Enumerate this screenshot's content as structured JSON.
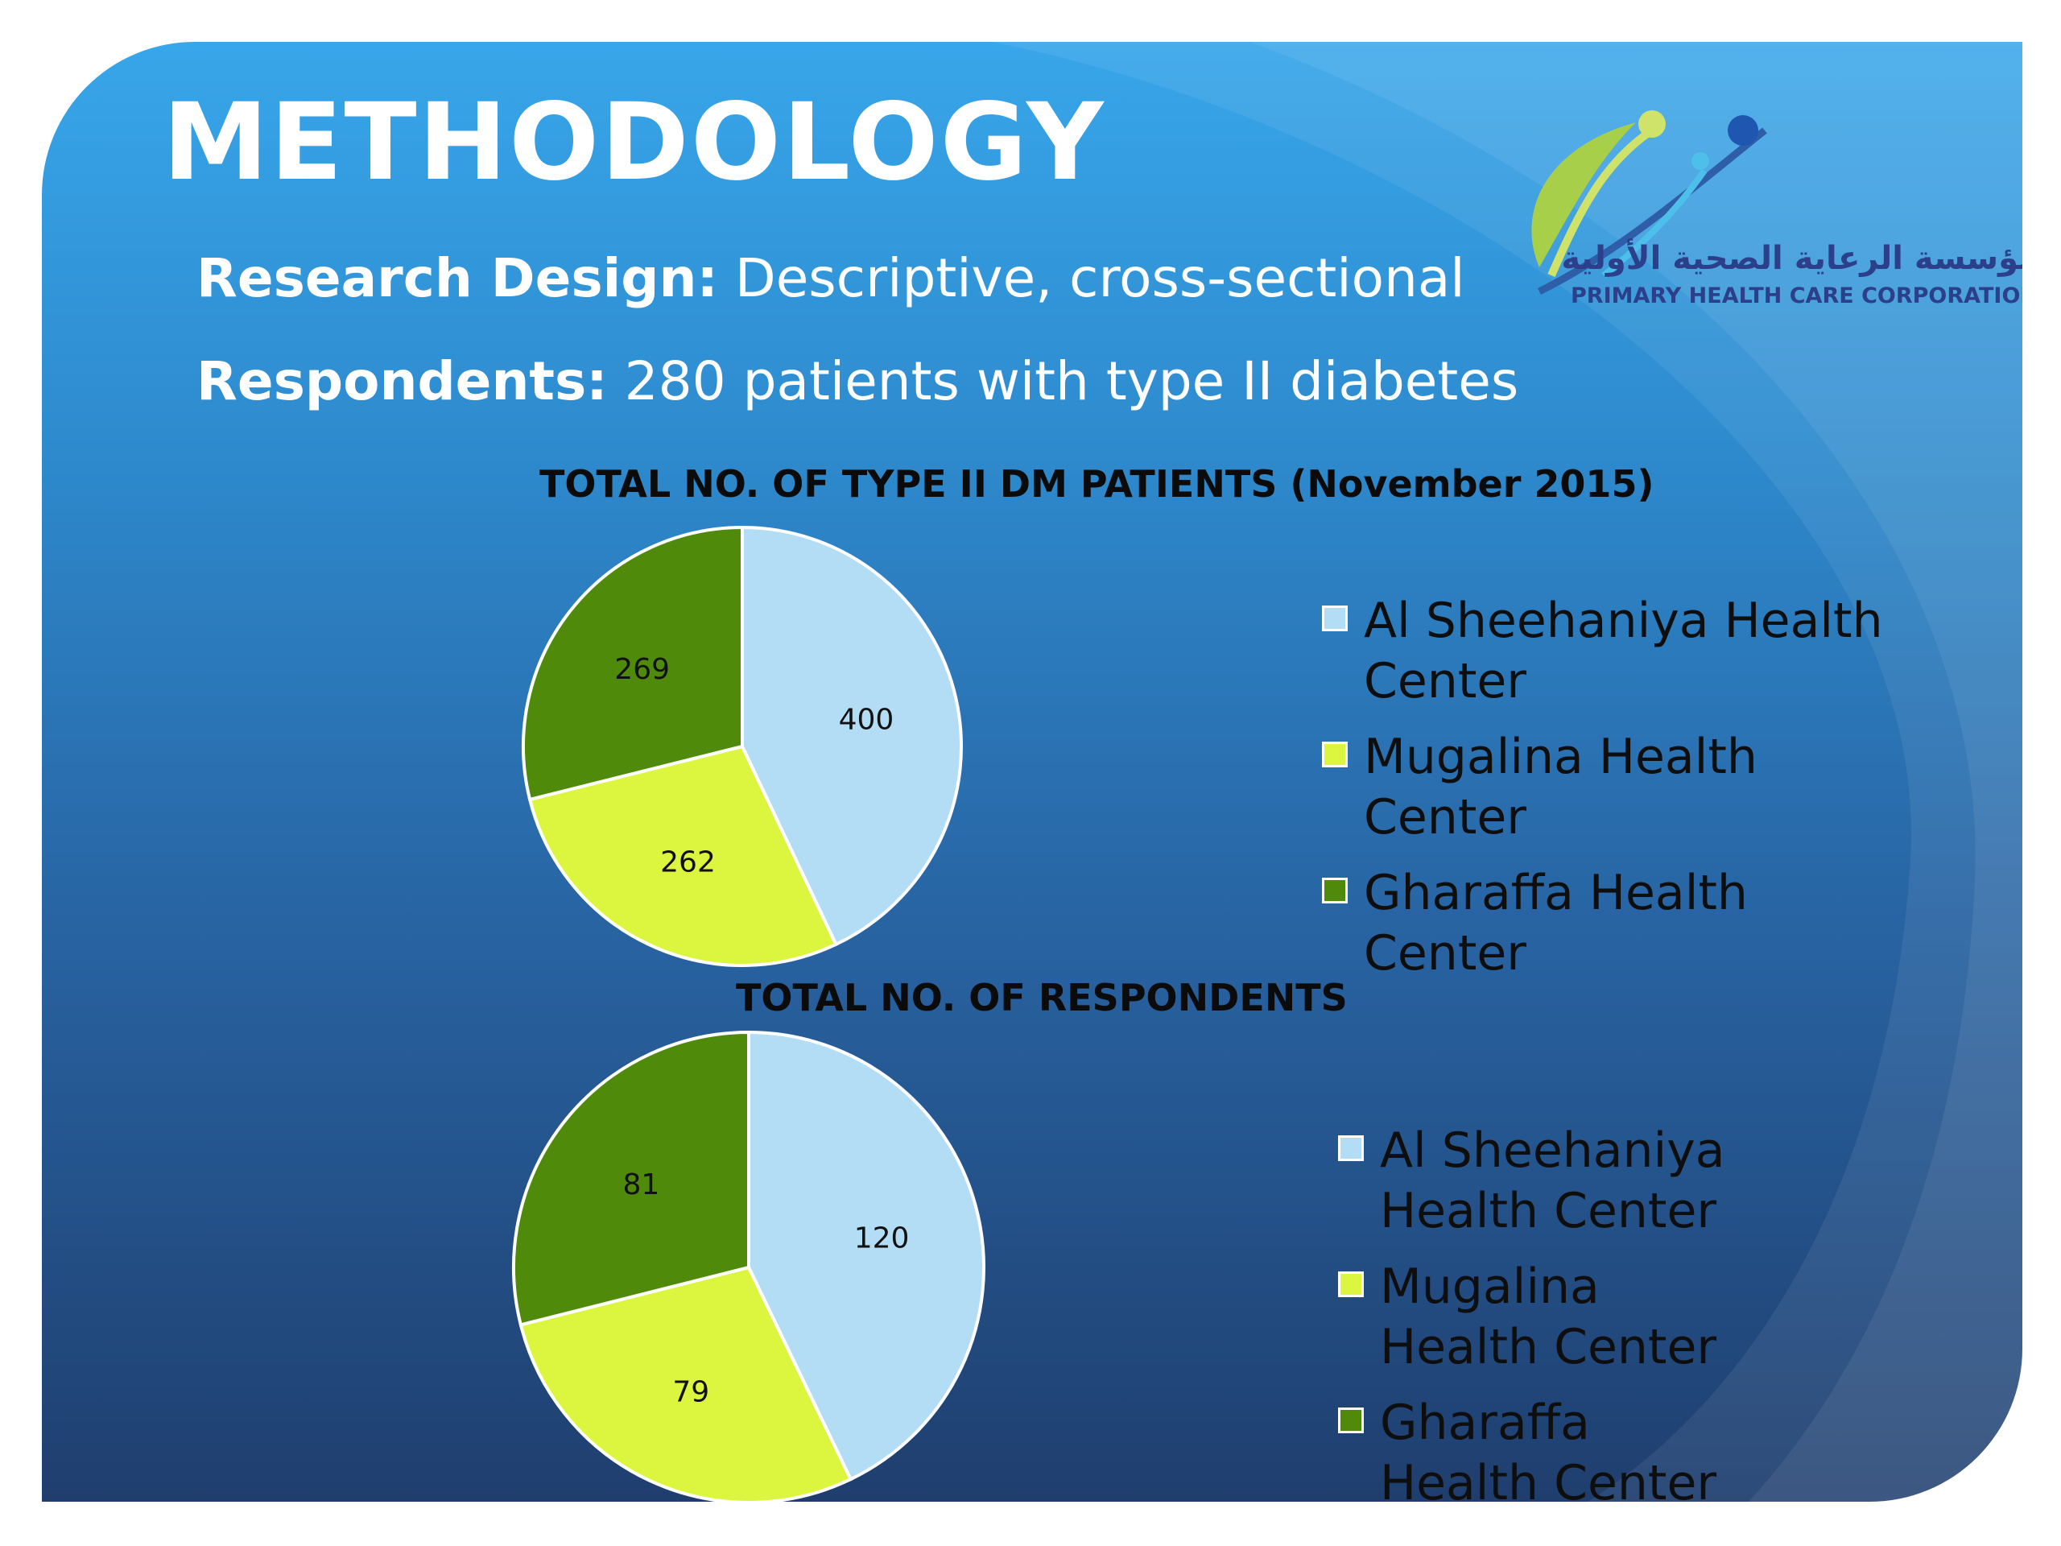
{
  "slide": {
    "title": "METHODOLOGY",
    "line1": {
      "label": "Research Design:",
      "value": " Descriptive, cross-sectional"
    },
    "line2": {
      "label": "Respondents:",
      "value": " 280 patients with type II diabetes"
    }
  },
  "logo": {
    "arabic": "مؤسسة الرعاية الصحية الأولية",
    "english": "PRIMARY HEALTH CARE CORPORATION"
  },
  "colors": {
    "sheehaniya": "#b3dcf5",
    "mugalina": "#dcf53f",
    "gharaffa": "#4f8a0a"
  },
  "chart_data": [
    {
      "type": "pie",
      "title": "TOTAL NO. OF TYPE II DM PATIENTS (November 2015)",
      "categories": [
        "Al Sheehaniya Health Center",
        "Mugalina Health Center",
        "Gharaffa Health Center"
      ],
      "values": [
        400,
        262,
        269
      ],
      "legend_position": "right"
    },
    {
      "type": "pie",
      "title": "TOTAL NO. OF RESPONDENTS",
      "categories": [
        "Al Sheehaniya Health Center",
        "Mugalina Health Center",
        "Gharaffa Health Center"
      ],
      "values": [
        120,
        79,
        81
      ],
      "legend_position": "right"
    }
  ]
}
